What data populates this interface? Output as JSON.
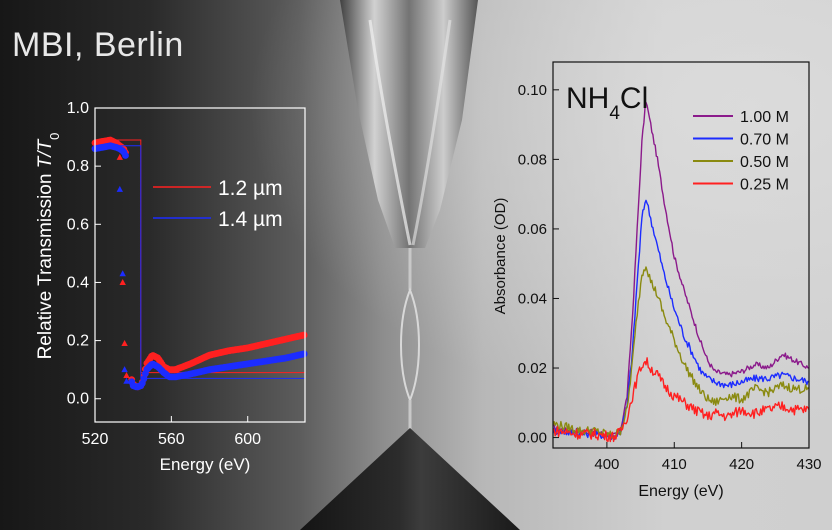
{
  "watermark": "MBI, Berlin",
  "colors": {
    "left_axis": "#ffffff",
    "right_axis": "#111111",
    "red": "#ff2020",
    "blue": "#1c2cff",
    "purple": "#8b1a8b",
    "olive": "#8a8a10"
  },
  "chart_data": [
    {
      "type": "scatter",
      "title": "",
      "xlabel": "Energy (eV)",
      "ylabel_prefix": "Relative Transmission ",
      "ylabel_var": "T/T",
      "ylabel_sub": "0",
      "xlim": [
        520,
        630
      ],
      "ylim": [
        -0.08,
        1.0
      ],
      "xticks": [
        520,
        560,
        600
      ],
      "yticks": [
        0.0,
        0.2,
        0.4,
        0.6,
        0.8,
        1.0
      ],
      "xtick_labels": [
        "520",
        "560",
        "600"
      ],
      "ytick_labels": [
        "0.0",
        "0.2",
        "0.4",
        "0.6",
        "0.8",
        "1.0"
      ],
      "grid": false,
      "legend_position": "center-right",
      "series": [
        {
          "name": "1.2 µm",
          "color": "#ff2020",
          "marker": "dense-dots",
          "points": [
            [
              520,
              0.88
            ],
            [
              524,
              0.885
            ],
            [
              528,
              0.89
            ],
            [
              531,
              0.88
            ],
            [
              533,
              0.87
            ],
            [
              535,
              0.86
            ],
            [
              536.5,
              0.84
            ],
            [
              537.5,
              0.25
            ],
            [
              538.5,
              0.08
            ],
            [
              540,
              0.05
            ],
            [
              542,
              0.04
            ],
            [
              544,
              0.045
            ],
            [
              545,
              0.06
            ],
            [
              547,
              0.12
            ],
            [
              550,
              0.15
            ],
            [
              553,
              0.14
            ],
            [
              556,
              0.11
            ],
            [
              559,
              0.1
            ],
            [
              562,
              0.1
            ],
            [
              570,
              0.12
            ],
            [
              580,
              0.15
            ],
            [
              590,
              0.165
            ],
            [
              600,
              0.175
            ],
            [
              610,
              0.19
            ],
            [
              620,
              0.205
            ],
            [
              630,
              0.22
            ]
          ],
          "triangles": [
            [
              533,
              0.83
            ],
            [
              534.5,
              0.4
            ],
            [
              535.5,
              0.19
            ],
            [
              536.5,
              0.08
            ]
          ],
          "line": [
            [
              520,
              0.89
            ],
            [
              544,
              0.89
            ],
            [
              544,
              0.09
            ],
            [
              630,
              0.09
            ]
          ]
        },
        {
          "name": "1.4 µm",
          "color": "#1c2cff",
          "marker": "dense-dots",
          "points": [
            [
              520,
              0.86
            ],
            [
              524,
              0.865
            ],
            [
              528,
              0.87
            ],
            [
              531,
              0.865
            ],
            [
              533,
              0.86
            ],
            [
              535,
              0.85
            ],
            [
              536.5,
              0.83
            ],
            [
              537.5,
              0.2
            ],
            [
              538.5,
              0.07
            ],
            [
              540,
              0.045
            ],
            [
              542,
              0.04
            ],
            [
              544,
              0.045
            ],
            [
              545,
              0.055
            ],
            [
              547,
              0.1
            ],
            [
              550,
              0.12
            ],
            [
              553,
              0.11
            ],
            [
              556,
              0.09
            ],
            [
              559,
              0.075
            ],
            [
              562,
              0.075
            ],
            [
              570,
              0.085
            ],
            [
              580,
              0.1
            ],
            [
              590,
              0.11
            ],
            [
              600,
              0.12
            ],
            [
              610,
              0.13
            ],
            [
              620,
              0.14
            ],
            [
              630,
              0.155
            ]
          ],
          "triangles": [
            [
              533,
              0.72
            ],
            [
              534.5,
              0.43
            ],
            [
              535.5,
              0.1
            ],
            [
              536.5,
              0.06
            ]
          ],
          "line": [
            [
              520,
              0.87
            ],
            [
              544,
              0.87
            ],
            [
              544,
              0.07
            ],
            [
              630,
              0.07
            ]
          ]
        }
      ]
    },
    {
      "type": "line",
      "title": "",
      "annotation_main": "NH",
      "annotation_sub": "4",
      "annotation_tail": "Cl",
      "xlabel": "Energy (eV)",
      "ylabel": "Absorbance (OD)",
      "xlim": [
        392,
        430
      ],
      "ylim": [
        -0.003,
        0.108
      ],
      "xticks": [
        400,
        410,
        420,
        430
      ],
      "yticks": [
        0.0,
        0.02,
        0.04,
        0.06,
        0.08,
        0.1
      ],
      "xtick_labels": [
        "400",
        "410",
        "420",
        "430"
      ],
      "ytick_labels": [
        "0.00",
        "0.02",
        "0.04",
        "0.06",
        "0.08",
        "0.10"
      ],
      "grid": false,
      "legend_position": "top-right",
      "series": [
        {
          "name": "1.00 M",
          "color": "#8b1a8b",
          "x": [
            392,
            394,
            396,
            398,
            400,
            401,
            402,
            403,
            403.8,
            404.5,
            405.2,
            405.8,
            406.5,
            407.5,
            408.5,
            410,
            411.5,
            413,
            414,
            415,
            416,
            418,
            420,
            422,
            424,
            426,
            428,
            430
          ],
          "y": [
            0.003,
            0.002,
            0.002,
            0.0015,
            0.001,
            0.0005,
            0.002,
            0.012,
            0.035,
            0.06,
            0.085,
            0.097,
            0.09,
            0.08,
            0.068,
            0.052,
            0.042,
            0.033,
            0.027,
            0.022,
            0.019,
            0.018,
            0.019,
            0.021,
            0.02,
            0.024,
            0.022,
            0.02
          ]
        },
        {
          "name": "0.70 M",
          "color": "#1c2cff",
          "x": [
            392,
            394,
            396,
            398,
            400,
            401,
            402,
            403,
            403.8,
            404.5,
            405.2,
            405.8,
            406.5,
            407.5,
            408.5,
            410,
            411.5,
            413,
            414,
            415,
            416,
            418,
            420,
            422,
            424,
            426,
            428,
            430
          ],
          "y": [
            0.002,
            0.0015,
            0.001,
            0.001,
            0.0005,
            0.0003,
            0.0015,
            0.009,
            0.025,
            0.045,
            0.063,
            0.069,
            0.063,
            0.055,
            0.047,
            0.037,
            0.029,
            0.023,
            0.019,
            0.017,
            0.016,
            0.015,
            0.016,
            0.017,
            0.017,
            0.018,
            0.017,
            0.016
          ]
        },
        {
          "name": "0.50 M",
          "color": "#8a8a10",
          "x": [
            392,
            394,
            396,
            398,
            400,
            401,
            402,
            403,
            403.8,
            404.5,
            405.2,
            405.8,
            406.5,
            407.5,
            408.5,
            410,
            411.5,
            413,
            414,
            415,
            416,
            418,
            420,
            422,
            424,
            426,
            428,
            430
          ],
          "y": [
            0.004,
            0.003,
            0.002,
            0.002,
            0.001,
            0.0005,
            0.002,
            0.008,
            0.022,
            0.036,
            0.047,
            0.05,
            0.045,
            0.041,
            0.035,
            0.028,
            0.021,
            0.016,
            0.013,
            0.011,
            0.01,
            0.012,
            0.011,
            0.014,
            0.013,
            0.015,
            0.014,
            0.014
          ]
        },
        {
          "name": "0.25 M",
          "color": "#ff2020",
          "x": [
            392,
            394,
            396,
            398,
            400,
            401,
            402,
            403,
            403.8,
            404.5,
            405.2,
            405.8,
            406.5,
            407.5,
            408.5,
            410,
            411.5,
            413,
            414,
            415,
            416,
            418,
            420,
            422,
            424,
            426,
            428,
            430
          ],
          "y": [
            0.002,
            0.0015,
            0.001,
            0.001,
            0.0005,
            0.0003,
            0.0015,
            0.006,
            0.012,
            0.017,
            0.021,
            0.022,
            0.02,
            0.018,
            0.015,
            0.012,
            0.01,
            0.008,
            0.007,
            0.006,
            0.007,
            0.006,
            0.008,
            0.007,
            0.008,
            0.009,
            0.008,
            0.008
          ]
        }
      ]
    }
  ]
}
